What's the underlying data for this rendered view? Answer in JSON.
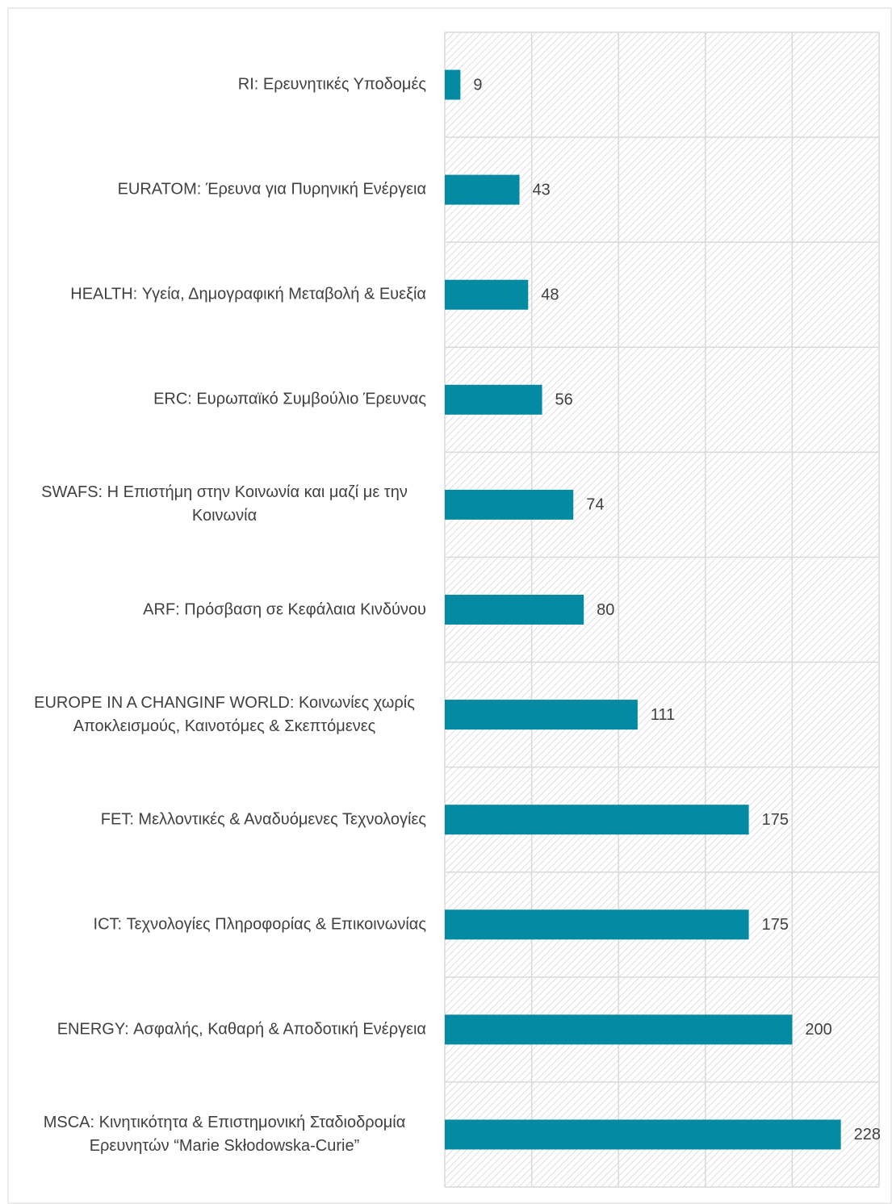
{
  "chart_data": {
    "type": "bar",
    "orientation": "horizontal",
    "color": "#048aa3",
    "categories": [
      "RI: Ερευνητικές Υποδομές",
      "EURATOM: Έρευνα για Πυρηνική Ενέργεια",
      "HEALTH: Υγεία, Δημογραφική Μεταβολή & Ευεξία",
      "ERC: Ευρωπαϊκό Συμβούλιο Έρευνας",
      "SWAFS: Η Επιστήμη στην Κοινωνία και μαζί με την Κοινωνία",
      "ARF: Πρόσβαση σε Κεφάλαια Κινδύνου",
      "EUROPE IN A CHANGINF WORLD: Κοινωνίες χωρίς Αποκλεισμούς, Καινοτόμες & Σκεπτόμενες",
      "FET: Μελλοντικές & Αναδυόμενες Τεχνολογίες",
      "ICT: Τεχνολογίες Πληροφορίας & Επικοινωνίας",
      "ENERGY: Ασφαλής, Καθαρή & Αποδοτική Ενέργεια",
      "MSCA: Κινητικότητα & Επιστημονική Σταδιοδρομία Ερευνητών “Marie Skłodowska-Curie”"
    ],
    "values": [
      9,
      43,
      48,
      56,
      74,
      80,
      111,
      175,
      175,
      200,
      228
    ],
    "xlim": [
      0,
      250
    ],
    "xticks": [
      0,
      50,
      100,
      150,
      200,
      250
    ],
    "grid": true
  }
}
